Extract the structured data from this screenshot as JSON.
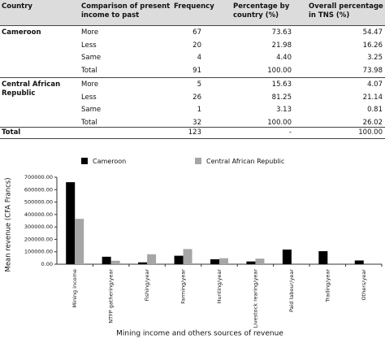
{
  "table": {
    "header": [
      "Country",
      "Comparison of present income to past",
      "Frequency",
      "Percentage by country (%)",
      "Overall percentage in TNS (%)"
    ],
    "groups": [
      {
        "country": "Cameroon",
        "rows": [
          [
            "More",
            "67",
            "73.63",
            "54.47"
          ],
          [
            "Less",
            "20",
            "21.98",
            "16.26"
          ],
          [
            "Same",
            "4",
            "4.40",
            "3.25"
          ],
          [
            "Total",
            "91",
            "100.00",
            "73.98"
          ]
        ]
      },
      {
        "country": "Central African Republic",
        "rows": [
          [
            "More",
            "5",
            "15.63",
            "4.07"
          ],
          [
            "Less",
            "26",
            "81.25",
            "21.14"
          ],
          [
            "Same",
            "1",
            "3.13",
            "0.81"
          ],
          [
            "Total",
            "32",
            "100.00",
            "26.02"
          ]
        ]
      }
    ],
    "total": [
      "Total",
      "123",
      "-",
      "100.00"
    ]
  },
  "chart_data": {
    "type": "bar",
    "y_label": "Mean revenue (CFA Francs)",
    "x_label": "Mining income and others sources of revenue",
    "categories": [
      "Mining income",
      "NTFP gathering/year",
      "Fishing/year",
      "Farming/year",
      "Hunting/year",
      "Livestock rearing/year",
      "Paid labour/year",
      "Trading/year",
      "Others/year"
    ],
    "series": [
      {
        "name": "Cameroon",
        "color": "#000000",
        "values": [
          660000,
          60000,
          15000,
          68000,
          40000,
          22000,
          118000,
          105000,
          30000
        ]
      },
      {
        "name": "Central African Republic",
        "color": "#a6a6a6",
        "values": [
          365000,
          28000,
          80000,
          122000,
          48000,
          45000,
          null,
          null,
          null
        ]
      }
    ],
    "ylim": [
      0,
      700000
    ],
    "yticks": [
      {
        "value": 0,
        "label": "0.00"
      },
      {
        "value": 100000,
        "label": "100000.00"
      },
      {
        "value": 200000,
        "label": "200000.00"
      },
      {
        "value": 300000,
        "label": "300000.00"
      },
      {
        "value": 400000,
        "label": "400000.00"
      },
      {
        "value": 500000,
        "label": "500000.00"
      },
      {
        "value": 600000,
        "label": "600000.00"
      },
      {
        "value": 700000,
        "label": "700000.00"
      }
    ]
  }
}
